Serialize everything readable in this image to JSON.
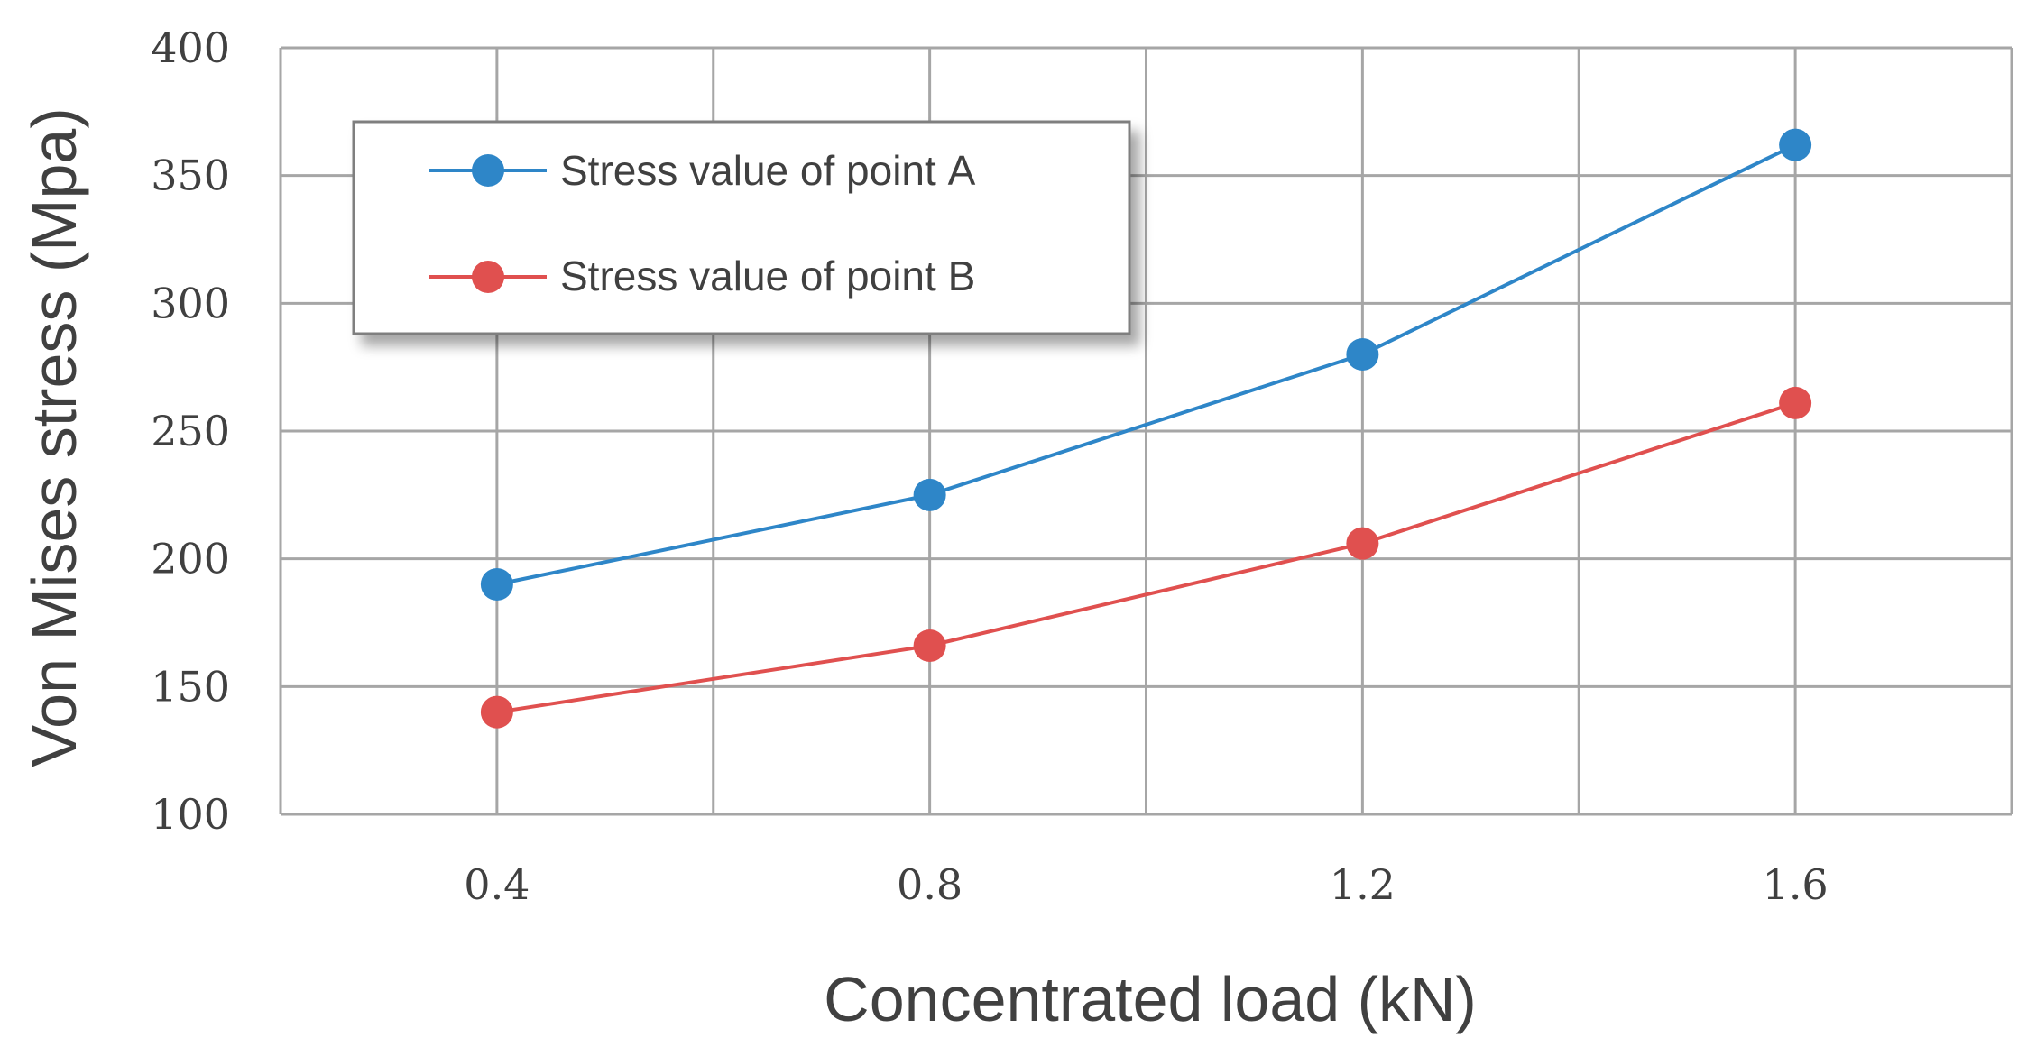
{
  "chart_data": {
    "type": "line",
    "title": "",
    "xlabel": "Concentrated load (kN)",
    "ylabel": "Von Mises stress (Mpa)",
    "x": [
      0.4,
      0.8,
      1.2,
      1.6
    ],
    "x_tick_labels": [
      "0.4",
      "0.8",
      "1.2",
      "1.6"
    ],
    "xlim": [
      0.2,
      1.8
    ],
    "x_grid": [
      0.2,
      0.4,
      0.6,
      0.8,
      1.0,
      1.2,
      1.4,
      1.6,
      1.8
    ],
    "ylim": [
      100,
      400
    ],
    "y_ticks": [
      100,
      150,
      200,
      250,
      300,
      350,
      400
    ],
    "y_tick_labels": [
      "100",
      "150",
      "200",
      "250",
      "300",
      "350",
      "400"
    ],
    "grid": true,
    "legend_position": "top-left",
    "series": [
      {
        "name": "Stress value of point A",
        "color": "#2e86c8",
        "values": [
          190,
          225,
          280,
          362
        ]
      },
      {
        "name": "Stress value of point B",
        "color": "#e0504f",
        "values": [
          140,
          166,
          206,
          261
        ]
      }
    ]
  }
}
